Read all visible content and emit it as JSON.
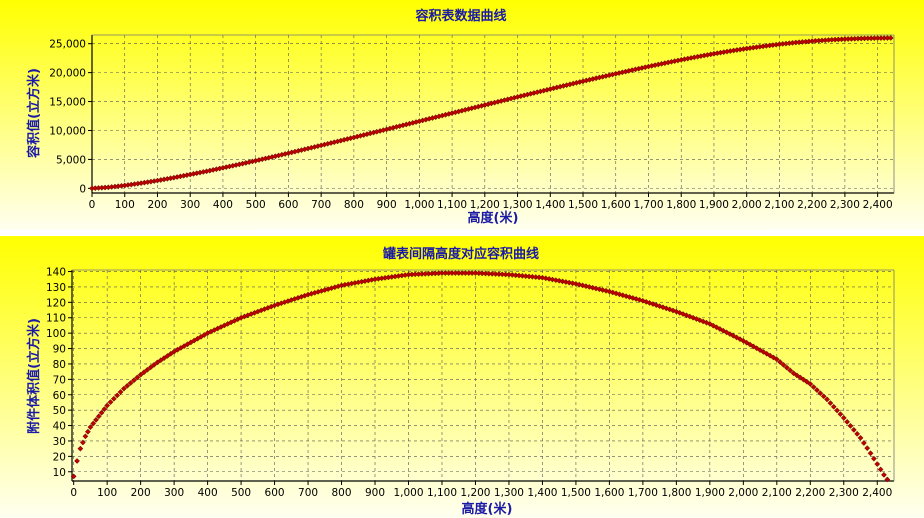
{
  "chart_data": [
    {
      "type": "scatter",
      "title": "容积表数据曲线",
      "xlabel": "高度(米)",
      "ylabel": "容积值(立方米)",
      "xlim": [
        0,
        2450
      ],
      "ylim": [
        -800,
        26500
      ],
      "x_ticks": [
        "0",
        "100",
        "200",
        "300",
        "400",
        "500",
        "600",
        "700",
        "800",
        "900",
        "1,000",
        "1,100",
        "1,200",
        "1,300",
        "1,400",
        "1,500",
        "1,600",
        "1,700",
        "1,800",
        "1,900",
        "2,000",
        "2,100",
        "2,200",
        "2,300",
        "2,400"
      ],
      "y_ticks": [
        "0",
        "5,000",
        "10,000",
        "15,000",
        "20,000",
        "25,000"
      ],
      "grid": true,
      "x": [
        0,
        50,
        100,
        150,
        200,
        250,
        300,
        350,
        400,
        450,
        500,
        550,
        600,
        650,
        700,
        750,
        800,
        850,
        900,
        950,
        1000,
        1050,
        1100,
        1150,
        1200,
        1250,
        1300,
        1350,
        1400,
        1450,
        1500,
        1550,
        1600,
        1650,
        1700,
        1750,
        1800,
        1850,
        1900,
        1950,
        2000,
        2050,
        2100,
        2150,
        2200,
        2250,
        2300,
        2350,
        2400,
        2440
      ],
      "y": [
        0,
        180,
        500,
        900,
        1350,
        1850,
        2400,
        2950,
        3550,
        4150,
        4780,
        5420,
        6080,
        6750,
        7430,
        8110,
        8800,
        9500,
        10200,
        10900,
        11600,
        12300,
        13000,
        13700,
        14400,
        15100,
        15800,
        16480,
        17160,
        17840,
        18510,
        19160,
        19800,
        20430,
        21050,
        21640,
        22210,
        22750,
        23260,
        23730,
        24160,
        24550,
        24900,
        25200,
        25440,
        25640,
        25790,
        25900,
        25960,
        25990
      ],
      "marker_color": "#c00000"
    },
    {
      "type": "scatter",
      "title": "罐表间隔高度对应容积曲线",
      "xlabel": "高度(米)",
      "ylabel": "附件体积值(立方米)",
      "xlim": [
        -5,
        2450
      ],
      "ylim": [
        4,
        141
      ],
      "x_ticks": [
        "0",
        "100",
        "200",
        "300",
        "400",
        "500",
        "600",
        "700",
        "800",
        "900",
        "1,000",
        "1,100",
        "1,200",
        "1,300",
        "1,400",
        "1,500",
        "1,600",
        "1,700",
        "1,800",
        "1,900",
        "2,000",
        "2,100",
        "2,200",
        "2,300",
        "2,400"
      ],
      "y_ticks": [
        "10",
        "20",
        "30",
        "40",
        "50",
        "60",
        "70",
        "80",
        "90",
        "100",
        "110",
        "120",
        "130",
        "140"
      ],
      "grid": true,
      "x": [
        0,
        10,
        20,
        35,
        50,
        75,
        100,
        150,
        200,
        250,
        300,
        400,
        500,
        600,
        700,
        800,
        900,
        1000,
        1100,
        1200,
        1300,
        1400,
        1500,
        1600,
        1700,
        1800,
        1900,
        2000,
        2100,
        2150,
        2200,
        2250,
        2300,
        2350,
        2380,
        2400,
        2420,
        2430
      ],
      "y": [
        7,
        17,
        25,
        33,
        39,
        46,
        53,
        64,
        73,
        81,
        88,
        100,
        110,
        118,
        125,
        131,
        135,
        138,
        139,
        139,
        138,
        136,
        132,
        127,
        121,
        114,
        106,
        95,
        83,
        74,
        67,
        57,
        45,
        32,
        22,
        15,
        8,
        5
      ],
      "marker_color": "#c00000"
    }
  ]
}
